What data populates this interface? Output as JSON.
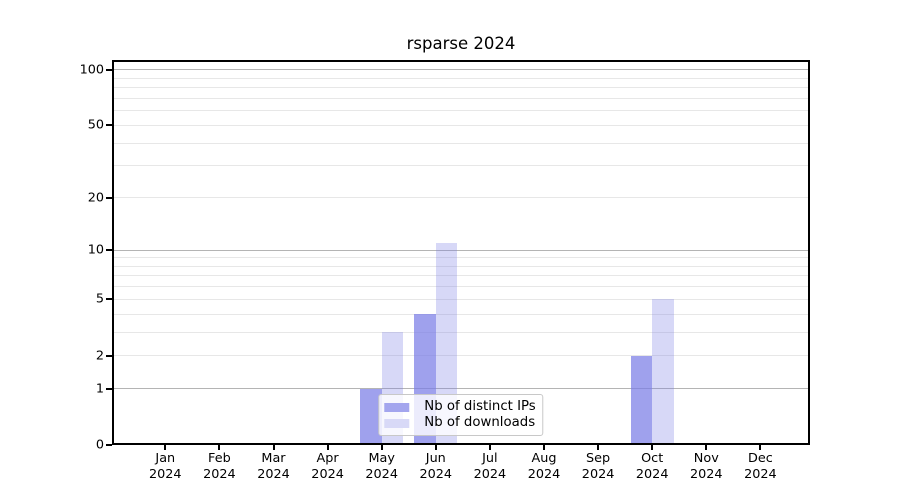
{
  "chart_data": {
    "type": "bar",
    "title": "rsparse 2024",
    "categories": [
      "Jan 2024",
      "Feb 2024",
      "Mar 2024",
      "Apr 2024",
      "May 2024",
      "Jun 2024",
      "Jul 2024",
      "Aug 2024",
      "Sep 2024",
      "Oct 2024",
      "Nov 2024",
      "Dec 2024"
    ],
    "x_tick_months": [
      "Jan",
      "Feb",
      "Mar",
      "Apr",
      "May",
      "Jun",
      "Jul",
      "Aug",
      "Sep",
      "Oct",
      "Nov",
      "Dec"
    ],
    "x_tick_year": "2024",
    "series": [
      {
        "name": "Nb of distinct IPs",
        "values": [
          0,
          0,
          0,
          0,
          1,
          4,
          0,
          0,
          0,
          2,
          0,
          0
        ],
        "fill": "rgba(122,125,230,0.72)",
        "swatch": "#a3a5ee"
      },
      {
        "name": "Nb of downloads",
        "values": [
          0,
          0,
          0,
          0,
          3,
          11,
          0,
          0,
          0,
          5,
          0,
          0
        ],
        "fill": "rgba(122,125,230,0.30)",
        "swatch": "#d8d9f7"
      }
    ],
    "y_axis": {
      "scale": "log1p",
      "tick_labels": [
        0,
        1,
        2,
        5,
        10,
        20,
        50,
        100
      ],
      "major_gridlines": [
        1,
        10,
        100
      ],
      "minor_gridlines": [
        2,
        3,
        4,
        6,
        7,
        8,
        9,
        5,
        20,
        30,
        40,
        50,
        60,
        70,
        80,
        90
      ],
      "range": [
        0,
        113
      ]
    },
    "legend": {
      "items": [
        "Nb of distinct IPs",
        "Nb of downloads"
      ],
      "position": "lower center"
    },
    "grid": true,
    "colors": {
      "major_grid": "#b4b4b4",
      "minor_grid": "#e7e7e7",
      "spine": "#000000",
      "text": "#000000",
      "background": "#ffffff"
    }
  }
}
